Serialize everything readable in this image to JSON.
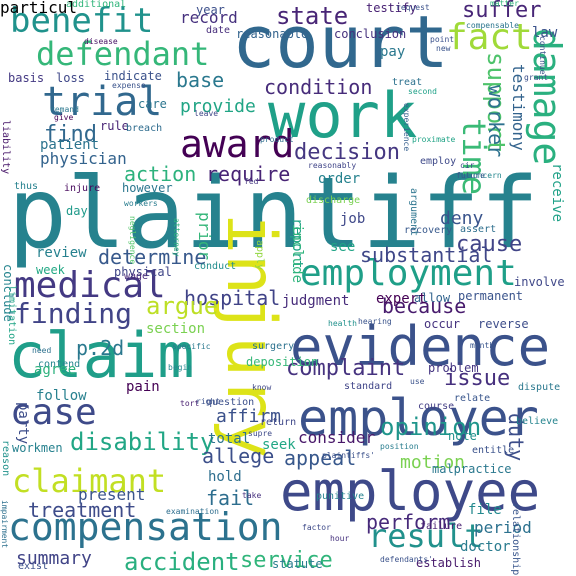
{
  "words": [
    {
      "text": "plaintiff",
      "color": "#26828e"
    },
    {
      "text": "injury",
      "color": "#dde318"
    },
    {
      "text": "court",
      "color": "#31688e"
    },
    {
      "text": "work",
      "color": "#1fa088"
    },
    {
      "text": "evidence",
      "color": "#3b528b"
    },
    {
      "text": "employee",
      "color": "#3e4989"
    },
    {
      "text": "claim",
      "color": "#1f9e89"
    },
    {
      "text": "employer",
      "color": "#3b528b"
    },
    {
      "text": "compensation",
      "color": "#2c728e"
    },
    {
      "text": "employment",
      "color": "#1f9f88"
    },
    {
      "text": "medical",
      "color": "#443983"
    },
    {
      "text": "award",
      "color": "#440154"
    },
    {
      "text": "trial",
      "color": "#31688e"
    },
    {
      "text": "damage",
      "color": "#2ab07f"
    },
    {
      "text": "benefit",
      "color": "#20928c"
    },
    {
      "text": "defendant",
      "color": "#35b779"
    },
    {
      "text": "fact",
      "color": "#a0da39"
    },
    {
      "text": "claimant",
      "color": "#c2df23"
    },
    {
      "text": "case",
      "color": "#3e4a89"
    },
    {
      "text": "result",
      "color": "#21918c"
    },
    {
      "text": "finding",
      "color": "#414487"
    },
    {
      "text": "time",
      "color": "#3aba76"
    },
    {
      "text": "support",
      "color": "#4ec36b"
    },
    {
      "text": "disability",
      "color": "#21a685"
    },
    {
      "text": "determine",
      "color": "#38598c"
    },
    {
      "text": "hospital",
      "color": "#404387"
    },
    {
      "text": "decision",
      "color": "#453781"
    },
    {
      "text": "condition",
      "color": "#472c7a"
    },
    {
      "text": "opinion",
      "color": "#1f958b"
    },
    {
      "text": "state",
      "color": "#482576"
    },
    {
      "text": "argue",
      "color": "#bddf26"
    },
    {
      "text": "accident",
      "color": "#29af7f"
    },
    {
      "text": "service",
      "color": "#31b57b"
    },
    {
      "text": "treatment",
      "color": "#3e4c8a"
    },
    {
      "text": "appeal",
      "color": "#38588c"
    },
    {
      "text": "issue",
      "color": "#46307e"
    },
    {
      "text": "cause",
      "color": "#414487"
    },
    {
      "text": "because",
      "color": "#481b6d"
    },
    {
      "text": "complaint",
      "color": "#46337f"
    },
    {
      "text": "fail",
      "color": "#2e6e8e"
    },
    {
      "text": "allege",
      "color": "#3c4f8a"
    },
    {
      "text": "perform",
      "color": "#472a7a"
    },
    {
      "text": "duty",
      "color": "#3d4e8a"
    },
    {
      "text": "find",
      "color": "#31688e"
    },
    {
      "text": "worker",
      "color": "#2d718e"
    },
    {
      "text": "testimony",
      "color": "#33638d"
    },
    {
      "text": "require",
      "color": "#482475"
    },
    {
      "text": "suffer",
      "color": "#482677"
    },
    {
      "text": "substantial",
      "color": "#3f4788"
    },
    {
      "text": "provide",
      "color": "#21a585"
    },
    {
      "text": "base",
      "color": "#2a788e"
    },
    {
      "text": "action",
      "color": "#2db27d"
    },
    {
      "text": "physician",
      "color": "#33638d"
    },
    {
      "text": "patient",
      "color": "#2c738e"
    },
    {
      "text": "summary",
      "color": "#414487"
    },
    {
      "text": "consider",
      "color": "#481769"
    },
    {
      "text": "see",
      "color": "#20a486"
    },
    {
      "text": "record",
      "color": "#46307e"
    },
    {
      "text": "judgment",
      "color": "#472c7a"
    },
    {
      "text": "expert",
      "color": "#440154"
    },
    {
      "text": "job",
      "color": "#3f4889"
    },
    {
      "text": "deny",
      "color": "#3a548c"
    },
    {
      "text": "order",
      "color": "#26828e"
    },
    {
      "text": "report",
      "color": "#20a386"
    },
    {
      "text": "prior",
      "color": "#34b679"
    },
    {
      "text": "affirm",
      "color": "#3b518b"
    },
    {
      "text": "total",
      "color": "#2c738e"
    },
    {
      "text": "party",
      "color": "#3d4d8a"
    },
    {
      "text": "follow",
      "color": "#27808e"
    },
    {
      "text": "present",
      "color": "#3a548c"
    },
    {
      "text": "hold",
      "color": "#2e6e8e"
    },
    {
      "text": "doctor",
      "color": "#297b8e"
    },
    {
      "text": "period",
      "color": "#2c718e"
    },
    {
      "text": "motion",
      "color": "#7ad151"
    },
    {
      "text": "file",
      "color": "#23898e"
    },
    {
      "text": "review",
      "color": "#26818e"
    },
    {
      "text": "week",
      "color": "#22a884"
    },
    {
      "text": "section",
      "color": "#7ad151"
    },
    {
      "text": "pain",
      "color": "#440154"
    },
    {
      "text": "p.2d",
      "color": "#2a788e"
    },
    {
      "text": "include",
      "color": "#2fb47c"
    },
    {
      "text": "receive",
      "color": "#1fa187"
    },
    {
      "text": "testify",
      "color": "#482173"
    },
    {
      "text": "reasonable",
      "color": "#33638d"
    },
    {
      "text": "conclusion",
      "color": "#46327e"
    },
    {
      "text": "pay",
      "color": "#2a788e"
    },
    {
      "text": "law",
      "color": "#3b528b"
    },
    {
      "text": "loss",
      "color": "#3f4788"
    },
    {
      "text": "basis",
      "color": "#443983"
    },
    {
      "text": "indicate",
      "color": "#3b528b"
    },
    {
      "text": "care",
      "color": "#2b758e"
    },
    {
      "text": "rule",
      "color": "#482475"
    },
    {
      "text": "breach",
      "color": "#2f6c8e"
    },
    {
      "text": "permanent",
      "color": "#3a548c"
    },
    {
      "text": "physical",
      "color": "#404688"
    },
    {
      "text": "wage",
      "color": "#482878"
    },
    {
      "text": "conduct",
      "color": "#228d8d"
    },
    {
      "text": "deposition",
      "color": "#37b878"
    },
    {
      "text": "allow",
      "color": "#32648e"
    },
    {
      "text": "occur",
      "color": "#46337f"
    },
    {
      "text": "reverse",
      "color": "#3d4d8a"
    },
    {
      "text": "day",
      "color": "#1f9a8a"
    },
    {
      "text": "however",
      "color": "#2a768e"
    },
    {
      "text": "limitation",
      "color": "#20a486"
    },
    {
      "text": "conclude",
      "color": "#25848e"
    },
    {
      "text": "contend",
      "color": "#25858e"
    },
    {
      "text": "agree",
      "color": "#2db27d"
    },
    {
      "text": "question",
      "color": "#3c508b"
    },
    {
      "text": "return",
      "color": "#3f4889"
    },
    {
      "text": "seek",
      "color": "#22a785"
    },
    {
      "text": "standard",
      "color": "#404588"
    },
    {
      "text": "problem",
      "color": "#453581"
    },
    {
      "text": "relate",
      "color": "#39568c"
    },
    {
      "text": "course",
      "color": "#433e85"
    },
    {
      "text": "note",
      "color": "#21918c"
    },
    {
      "text": "entitle",
      "color": "#3b528b"
    },
    {
      "text": "malpractice",
      "color": "#2a788e"
    },
    {
      "text": "establish",
      "color": "#481a6c"
    },
    {
      "text": "relationship",
      "color": "#39568c"
    },
    {
      "text": "failure",
      "color": "#482071"
    },
    {
      "text": "statute",
      "color": "#287d8e"
    },
    {
      "text": "punitive",
      "color": "#26828e"
    },
    {
      "text": "workmen",
      "color": "#26818e"
    },
    {
      "text": "surgery",
      "color": "#2c728e"
    },
    {
      "text": "recovery",
      "color": "#38598c"
    },
    {
      "text": "assert",
      "color": "#2e6f8e"
    },
    {
      "text": "involve",
      "color": "#3f4788"
    },
    {
      "text": "dispute",
      "color": "#2a788e"
    },
    {
      "text": "believe",
      "color": "#25848e"
    },
    {
      "text": "exist",
      "color": "#3c508b"
    },
    {
      "text": "year",
      "color": "#3c4f8a"
    },
    {
      "text": "date",
      "color": "#472d7b"
    },
    {
      "text": "additional",
      "color": "#31b57b"
    },
    {
      "text": "disease",
      "color": "#471365"
    },
    {
      "text": "expense",
      "color": "#3a538b"
    },
    {
      "text": "remand",
      "color": "#2a778e"
    },
    {
      "text": "give",
      "color": "#440154"
    },
    {
      "text": "liability",
      "color": "#48186a"
    },
    {
      "text": "injure",
      "color": "#46085c"
    },
    {
      "text": "thus",
      "color": "#26818e"
    },
    {
      "text": "negligence",
      "color": "#52c569"
    },
    {
      "text": "attorney",
      "color": "#2db27d"
    },
    {
      "text": "workers",
      "color": "#287c8e"
    },
    {
      "text": "treat",
      "color": "#2c718e"
    },
    {
      "text": "employ",
      "color": "#3e4989"
    },
    {
      "text": "argument",
      "color": "#2b748e"
    },
    {
      "text": "discharge",
      "color": "#7ad151"
    },
    {
      "text": "position",
      "color": "#287d8e"
    },
    {
      "text": "hour",
      "color": "#46327e"
    },
    {
      "text": "factor",
      "color": "#3e4a89"
    },
    {
      "text": "impairment",
      "color": "#2d708e"
    },
    {
      "text": "reason",
      "color": "#20928c"
    },
    {
      "text": "know",
      "color": "#3f4788"
    },
    {
      "text": "health",
      "color": "#21918c"
    },
    {
      "text": "month",
      "color": "#39558c"
    },
    {
      "text": "hearing",
      "color": "#3a538b"
    },
    {
      "text": "apply",
      "color": "#93d741"
    },
    {
      "text": "tort",
      "color": "#481f70"
    },
    {
      "text": "begin",
      "color": "#24868e"
    },
    {
      "text": "second",
      "color": "#1fa188"
    },
    {
      "text": "request",
      "color": "#3b518b"
    },
    {
      "text": "matter",
      "color": "#31b57b"
    },
    {
      "text": "compensable",
      "color": "#2b758e"
    },
    {
      "text": "grant",
      "color": "#3c4f8a"
    },
    {
      "text": "continue",
      "color": "#3b528b"
    },
    {
      "text": "concern",
      "color": "#24878e"
    },
    {
      "text": "proximate",
      "color": "#20a386"
    },
    {
      "text": "experience",
      "color": "#355f8d"
    },
    {
      "text": "product",
      "color": "#2e6e8e"
    },
    {
      "text": "leave",
      "color": "#3f4788"
    },
    {
      "text": "right",
      "color": "#3b518b"
    },
    {
      "text": "specific",
      "color": "#2a788e"
    },
    {
      "text": "use",
      "color": "#3b528b"
    },
    {
      "text": "need",
      "color": "#2d718e"
    },
    {
      "text": "supre",
      "color": "#3e4a89"
    },
    {
      "text": "examination",
      "color": "#2e6e8e"
    },
    {
      "text": "plaintiffs'",
      "color": "#3b518b"
    },
    {
      "text": "take",
      "color": "#46307e"
    },
    {
      "text": "future",
      "color": "#38588c"
    },
    {
      "text": "cir",
      "color": "#3e4a89"
    },
    {
      "text": "point",
      "color": "#3b518b"
    },
    {
      "text": "new",
      "color": "#3a548c"
    },
    {
      "text": "fed",
      "color": "#453781"
    },
    {
      "text": "reasonably",
      "color": "#404588"
    },
    {
      "text": "defendants'",
      "color": "#3b528b"
    },
    {
      "text": "particul",
      "color": "#3e4989"
    }
  ]
}
